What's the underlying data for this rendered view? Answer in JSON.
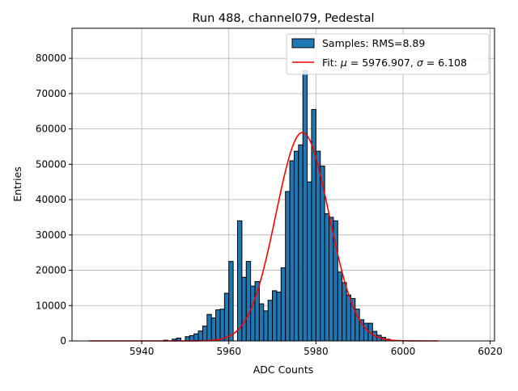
{
  "chart_data": {
    "type": "bar",
    "title": "Run 488, channel079, Pedestal",
    "xlabel": "ADC Counts",
    "ylabel": "Entries",
    "xlim": [
      5924,
      6021
    ],
    "ylim": [
      0,
      88500
    ],
    "xticks": [
      5940,
      5960,
      5980,
      6000,
      6020
    ],
    "yticks": [
      0,
      10000,
      20000,
      30000,
      40000,
      50000,
      60000,
      70000,
      80000
    ],
    "grid": true,
    "legend_position": "top-right",
    "legend": {
      "hist_label": "Samples: RMS=8.89",
      "fit_label_prefix": "Fit: ",
      "fit_mu_symbol": "μ",
      "fit_mu_text": " = 5976.907, ",
      "fit_sigma_symbol": "σ",
      "fit_sigma_text": " = 6.108"
    },
    "bin_width": 1,
    "bin_edges_start": 5940,
    "histogram_values": [
      0,
      0,
      0,
      0,
      0,
      200,
      0,
      500,
      800,
      0,
      1200,
      1500,
      2000,
      2800,
      4200,
      7500,
      6500,
      8800,
      9000,
      13500,
      22500,
      0,
      34000,
      18000,
      22500,
      15500,
      16800,
      10500,
      8500,
      11500,
      14200,
      13800,
      20700,
      42300,
      51000,
      53700,
      55500,
      76500,
      45000,
      65500,
      53700,
      49500,
      36000,
      35000,
      34000,
      19500,
      16500,
      13000,
      12000,
      9000,
      6000,
      5000,
      5000,
      2700,
      1600,
      1000,
      500,
      200,
      100,
      0
    ],
    "fit": {
      "mu": 5976.907,
      "sigma": 6.108,
      "amplitude": 59000,
      "x_range": [
        5928,
        6008
      ]
    },
    "colors": {
      "bar_fill": "#1f77b4",
      "bar_edge": "#000000",
      "fit_line": "#ff0000",
      "grid": "#b0b0b0"
    }
  }
}
